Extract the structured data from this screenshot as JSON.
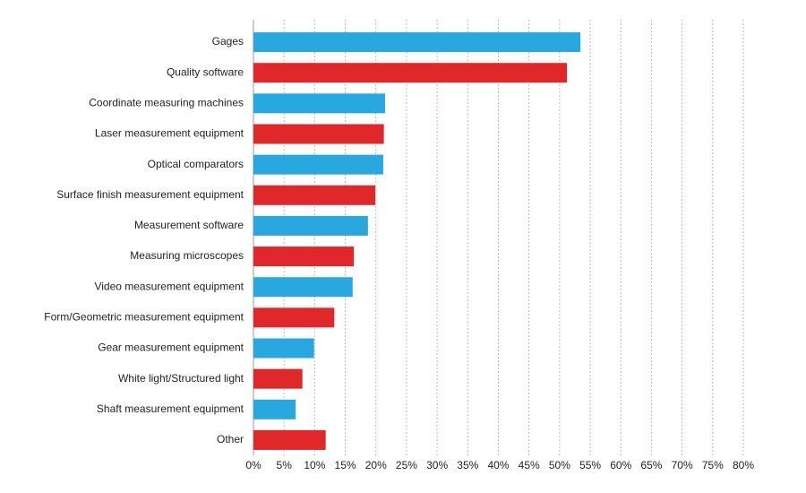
{
  "chart_data": {
    "type": "bar",
    "orientation": "horizontal",
    "categories": [
      "Gages",
      "Quality software",
      "Coordinate measuring machines",
      "Laser measurement equipment",
      "Optical comparators",
      "Surface finish measurement equipment",
      "Measurement software",
      "Measuring microscopes",
      "Video measurement equipment",
      "Form/Geometric measurement equipment",
      "Gear measurement equipment",
      "White light/Structured light",
      "Shaft measurement equipment",
      "Other"
    ],
    "values": [
      53.4,
      51.2,
      21.5,
      21.3,
      21.2,
      19.9,
      18.7,
      16.4,
      16.2,
      13.2,
      9.9,
      8.0,
      6.9,
      11.8
    ],
    "colors": [
      "#29a8e0",
      "#e0282a",
      "#29a8e0",
      "#e0282a",
      "#29a8e0",
      "#e0282a",
      "#29a8e0",
      "#e0282a",
      "#29a8e0",
      "#e0282a",
      "#29a8e0",
      "#e0282a",
      "#29a8e0",
      "#e0282a"
    ],
    "xlim": [
      0,
      80
    ],
    "xticks": [
      {
        "value": 0,
        "label": "0%"
      },
      {
        "value": 5,
        "label": "5%"
      },
      {
        "value": 10,
        "label": "10%"
      },
      {
        "value": 15,
        "label": "15%"
      },
      {
        "value": 20,
        "label": "20%"
      },
      {
        "value": 25,
        "label": "25%"
      },
      {
        "value": 30,
        "label": "30%"
      },
      {
        "value": 35,
        "label": "35%"
      },
      {
        "value": 40,
        "label": "40%"
      },
      {
        "value": 45,
        "label": "45%"
      },
      {
        "value": 50,
        "label": "50%"
      },
      {
        "value": 55,
        "label": "55%"
      },
      {
        "value": 60,
        "label": "60%"
      },
      {
        "value": 65,
        "label": "65%"
      },
      {
        "value": 70,
        "label": "70%"
      },
      {
        "value": 75,
        "label": "75%"
      },
      {
        "value": 80,
        "label": "80%"
      }
    ],
    "grid": true
  }
}
